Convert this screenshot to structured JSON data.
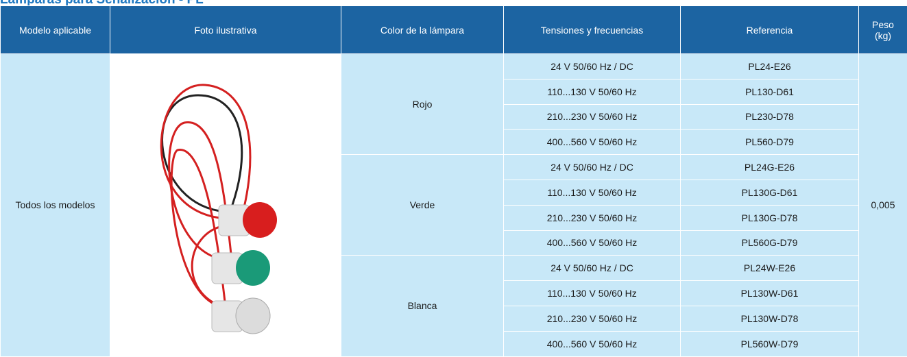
{
  "header": {
    "title": "Lámparas para Señalización - PL"
  },
  "table": {
    "columns": [
      "Modelo aplicable",
      "Foto ilustrativa",
      "Color de la lámpara",
      "Tensiones y frecuencias",
      "Referencia",
      "Peso\n(kg)"
    ],
    "model": "Todos los modelos",
    "weight": "0,005",
    "groups": [
      {
        "color": "Rojo",
        "rows": [
          {
            "voltage": "24 V 50/60 Hz / DC",
            "reference": "PL24-E26"
          },
          {
            "voltage": "110...130 V 50/60 Hz",
            "reference": "PL130-D61"
          },
          {
            "voltage": "210...230 V 50/60 Hz",
            "reference": "PL230-D78"
          },
          {
            "voltage": "400...560 V 50/60 Hz",
            "reference": "PL560-D79"
          }
        ]
      },
      {
        "color": "Verde",
        "rows": [
          {
            "voltage": "24 V 50/60 Hz / DC",
            "reference": "PL24G-E26"
          },
          {
            "voltage": "110...130 V 50/60 Hz",
            "reference": "PL130G-D61"
          },
          {
            "voltage": "210...230 V 50/60 Hz",
            "reference": "PL130G-D78"
          },
          {
            "voltage": "400...560 V 50/60 Hz",
            "reference": "PL560G-D79"
          }
        ]
      },
      {
        "color": "Blanca",
        "rows": [
          {
            "voltage": "24 V 50/60 Hz / DC",
            "reference": "PL24W-E26"
          },
          {
            "voltage": "110...130 V 50/60 Hz",
            "reference": "PL130W-D61"
          },
          {
            "voltage": "210...230 V 50/60 Hz",
            "reference": "PL130W-D78"
          },
          {
            "voltage": "400...560 V 50/60 Hz",
            "reference": "PL560W-D79"
          }
        ]
      }
    ]
  }
}
